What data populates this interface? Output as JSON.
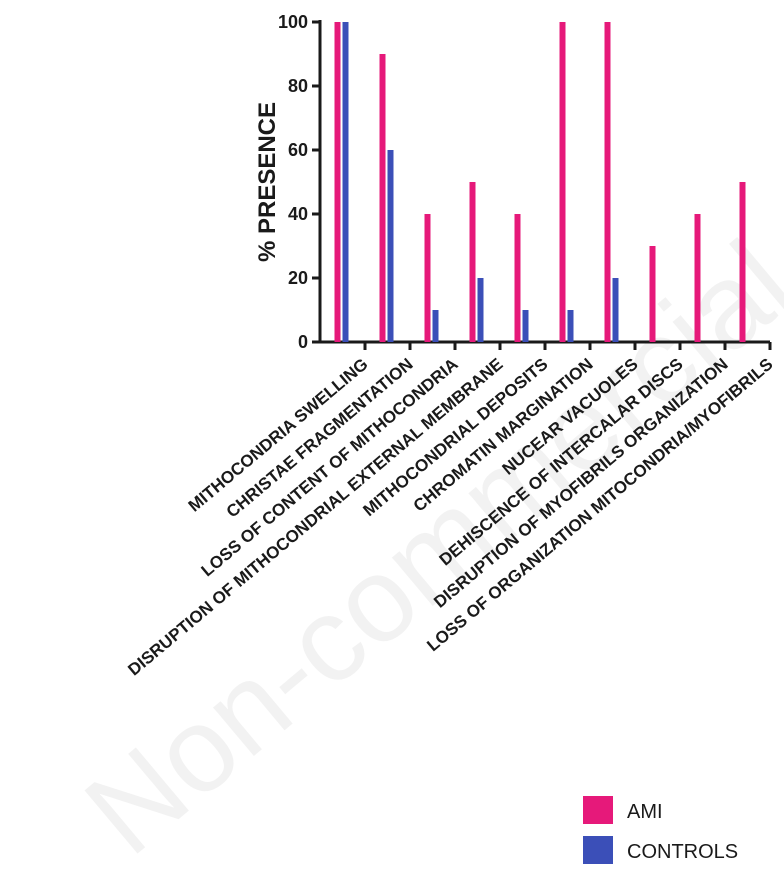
{
  "chart_data": {
    "type": "bar",
    "title": "",
    "xlabel": "",
    "ylabel": "% PRESENCE",
    "ylim": [
      0,
      100
    ],
    "yticks": [
      0,
      20,
      40,
      60,
      80,
      100
    ],
    "grid": false,
    "legend_position": "bottom-right",
    "categories": [
      "MITHOCONDRIA SWELLING",
      "CHRISTAE FRAGMENTATION",
      "LOSS OF CONTENT OF MITHOCONDRIA",
      "DISRUPTION OF MITHOCONDRIAL EXTERNAL MEMBRANE",
      "MITHOCONDRIAL DEPOSITS",
      "CHROMATIN MARGINATION",
      "NUCEAR VACUOLES",
      "DEHISCENCE OF INTERCALAR DISCS",
      "DISRUPTION OF MYOFIBRILS ORGANIZATION",
      "LOSS OF ORGANIZATION MITOCONDRIA/MYOFIBRILS"
    ],
    "series": [
      {
        "name": "AMI",
        "color": "#e6197a",
        "values": [
          100,
          90,
          40,
          50,
          40,
          100,
          100,
          30,
          40,
          50
        ]
      },
      {
        "name": "CONTROLS",
        "color": "#3b4fb8",
        "values": [
          100,
          60,
          10,
          20,
          10,
          10,
          20,
          0,
          0,
          0
        ]
      }
    ]
  },
  "watermark": "Non-commercial use only"
}
